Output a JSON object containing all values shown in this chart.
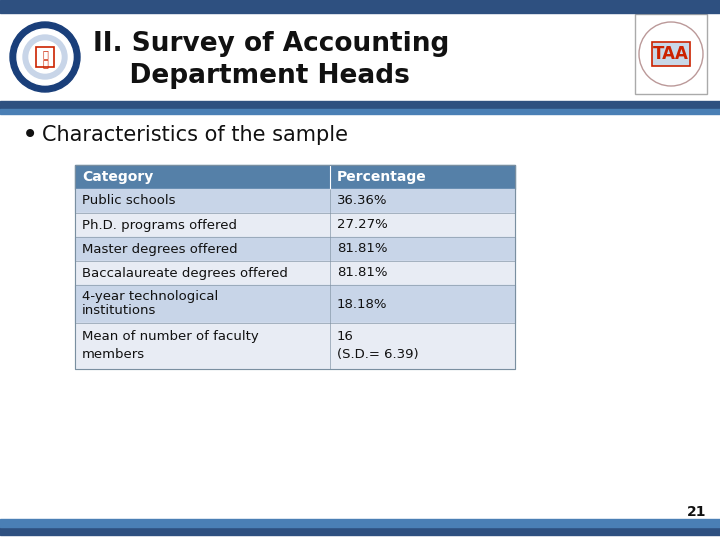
{
  "title_line1": "II. Survey of Accounting",
  "title_line2": "    Department Heads",
  "subtitle": "Characteristics of the sample",
  "top_bar_color": "#2E5080",
  "mid_bar_color": "#4A7FB5",
  "slide_bg": "#FFFFFF",
  "table_header_bg": "#5580A8",
  "table_header_text": "#FFFFFF",
  "row_odd_bg": "#C8D5E8",
  "row_even_bg": "#E8ECF4",
  "table_text_color": "#111111",
  "col1_header": "Category",
  "col2_header": "Percentage",
  "rows": [
    [
      "Public schools",
      "36.36%"
    ],
    [
      "Ph.D. programs offered",
      "27.27%"
    ],
    [
      "Master degrees offered",
      "81.81%"
    ],
    [
      "Baccalaureate degrees offered",
      "81.81%"
    ],
    [
      "4-year technological\ninstitutions",
      "18.18%"
    ],
    [
      "Mean of number of faculty\nmembers",
      "16\n(S.D.= 6.39)"
    ]
  ],
  "page_number": "21",
  "title_fontsize": 19,
  "subtitle_fontsize": 15,
  "table_fontsize": 9.5,
  "table_header_fontsize": 10
}
